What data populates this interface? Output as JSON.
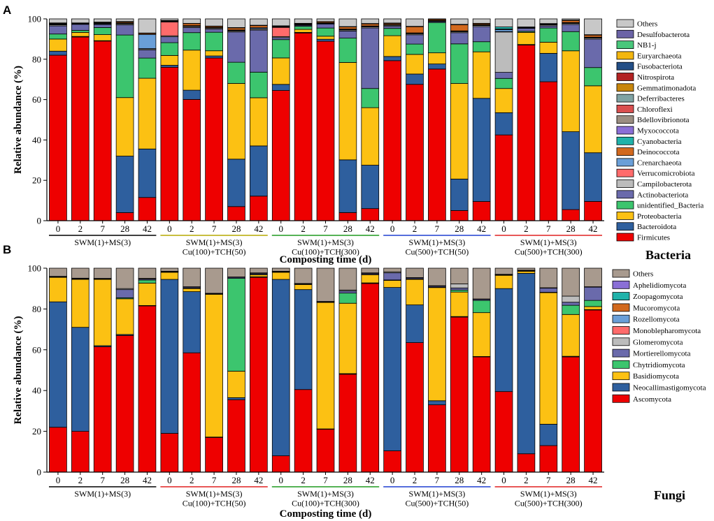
{
  "figure": {
    "panels": [
      "A",
      "B"
    ],
    "kingdom_labels": [
      "Bacteria",
      "Fungi"
    ]
  },
  "chart_data": [
    {
      "type": "bar",
      "stacked": true,
      "panel": "A",
      "kingdom": "Bacteria",
      "xlabel": "Composting time (d)",
      "ylabel": "Relative abundance (%)",
      "ylim": [
        0,
        100
      ],
      "yticks": [
        0,
        20,
        40,
        60,
        80,
        100
      ],
      "groups": [
        {
          "label": [
            "SWM(1)+MS(3)"
          ],
          "color": "#000000",
          "days": [
            "0",
            "2",
            "7",
            "28",
            "42"
          ]
        },
        {
          "label": [
            "SWM(1)+MS(3)",
            "Cu(100)+TCH(50)"
          ],
          "color": "#b5a800",
          "days": [
            "0",
            "2",
            "7",
            "28",
            "42"
          ]
        },
        {
          "label": [
            "SWM(1)+MS(3)",
            "Cu(100)+TCH(300)"
          ],
          "color": "#1f9a1f",
          "days": [
            "0",
            "2",
            "7",
            "28",
            "42"
          ]
        },
        {
          "label": [
            "SWM(1)+MS(3)",
            "Cu(500)+TCH(50)"
          ],
          "color": "#1f3fd0",
          "days": [
            "0",
            "2",
            "7",
            "28",
            "42"
          ]
        },
        {
          "label": [
            "SWM(1)+MS(3)",
            "Cu(500)+TCH(300)"
          ],
          "color": "#e02020",
          "days": [
            "0",
            "2",
            "7",
            "28",
            "42"
          ]
        }
      ],
      "legend": [
        "Others",
        "Desulfobacterota",
        "NB1-j",
        "Euryarchaeota",
        "Fusobacteriota",
        "Nitrospirota",
        "Gemmatimonadota",
        "Deferribacteres",
        "Chloroflexi",
        "Bdellovibrionota",
        "Myxococcota",
        "Cyanobacteria",
        "Deinococcota",
        "Crenarchaeota",
        "Verrucomicrobiota",
        "Campilobacterota",
        "Actinobacteriota",
        "unidentified_Bacteria",
        "Proteobacteria",
        "Bacteroidota",
        "Firmicutes"
      ],
      "colors": {
        "Firmicutes": "#ee0000",
        "Bacteroidota": "#2e5f9e",
        "Proteobacteria": "#fcc113",
        "unidentified_Bacteria": "#3cc56e",
        "Actinobacteriota": "#6a6aab",
        "Campilobacterota": "#bcbcbc",
        "Verrucomicrobiota": "#ff6b6b",
        "Crenarchaeota": "#6a9fd8",
        "Deinococcota": "#d2691e",
        "Cyanobacteria": "#20b2aa",
        "Myxococcota": "#8a6fd6",
        "Bdellovibrionota": "#9b8e82",
        "Chloroflexi": "#d94f4f",
        "Deferribacteres": "#7fa3a3",
        "Gemmatimonadota": "#c8860c",
        "Nitrospirota": "#b22222",
        "Fusobacteriota": "#224e86",
        "Euryarchaeota": "#f3b60f",
        "NB1-j": "#49c77b",
        "Desulfobacterota": "#6b63a6",
        "Others": "#c8c8c8"
      },
      "series": [
        {
          "name": "Firmicutes",
          "values": [
            82,
            91,
            89,
            4,
            11.5,
            78,
            59,
            79,
            7,
            12,
            64,
            93,
            88,
            4,
            6,
            77,
            66,
            75,
            5,
            9.5,
            42.5,
            87,
            68.5,
            5.5,
            9.5
          ]
        },
        {
          "name": "Bacteroidota",
          "values": [
            2,
            0.3,
            0.2,
            28,
            24,
            1,
            4.5,
            1,
            23.5,
            24.5,
            3,
            0.3,
            1,
            26,
            21.5,
            2,
            5,
            2.5,
            15.5,
            51,
            11,
            0.3,
            14,
            38.5,
            24
          ]
        },
        {
          "name": "Proteobacteria",
          "values": [
            6,
            2,
            3,
            29,
            35,
            5,
            19.5,
            2.5,
            37.5,
            23.5,
            13,
            1.5,
            1.5,
            48,
            28.5,
            10,
            9.5,
            5.5,
            47,
            23,
            12,
            6,
            5.5,
            40,
            33
          ]
        },
        {
          "name": "unidentified_Bacteria",
          "values": [
            2.5,
            1,
            3.5,
            31,
            10,
            6.5,
            8.5,
            9,
            10.5,
            12.5,
            9,
            1.5,
            4,
            12,
            9.5,
            3.5,
            5,
            15,
            19.5,
            5,
            5,
            0.5,
            7,
            9.5,
            9
          ]
        },
        {
          "name": "Actinobacteriota",
          "values": [
            4,
            3,
            1.5,
            5,
            4,
            3,
            2.5,
            1.5,
            15,
            20.5,
            1,
            0.5,
            2,
            3.5,
            30,
            1,
            4.5,
            0.5,
            5.5,
            7.5,
            3,
            1.5,
            1,
            3.5,
            14
          ]
        },
        {
          "name": "Campilobacterota",
          "values": [
            0.5,
            0.2,
            0.3,
            0.5,
            0.5,
            0.5,
            0.5,
            0.5,
            0.5,
            0.5,
            0.5,
            0.2,
            0.2,
            0.5,
            0.5,
            0.5,
            0.5,
            0.2,
            0.5,
            0.5,
            20,
            0.2,
            0.5,
            0.5,
            0.5
          ]
        },
        {
          "name": "Verrucomicrobiota",
          "values": [
            0.2,
            0.1,
            0.2,
            0.2,
            0.2,
            7,
            0.2,
            0.2,
            0.2,
            0.2,
            4.5,
            0.2,
            0.2,
            0.2,
            0.2,
            0.2,
            0.2,
            0.2,
            0.2,
            0.2,
            0.2,
            0.1,
            0.2,
            0.2,
            0.2
          ]
        },
        {
          "name": "Crenarchaeota",
          "values": [
            0.3,
            0.2,
            0.3,
            0.3,
            7,
            0.3,
            0.2,
            0.2,
            0.3,
            0.5,
            0.3,
            0.2,
            0.2,
            0.3,
            0.3,
            0.2,
            0.2,
            0.2,
            0.2,
            0.2,
            1,
            0.1,
            0.2,
            0.3,
            0.3
          ]
        },
        {
          "name": "Deinococcota",
          "values": [
            0.3,
            0.1,
            0.3,
            0.5,
            0.5,
            0.3,
            1,
            0.5,
            1,
            1,
            0.3,
            0.3,
            0.5,
            1,
            1,
            0.5,
            3,
            0.5,
            3,
            0.5,
            0.3,
            0.2,
            0.2,
            1,
            1
          ]
        },
        {
          "name": "Cyanobacteria",
          "values": [
            0.2,
            0.1,
            0.1,
            0.2,
            0.2,
            0.2,
            0.1,
            0.1,
            0.2,
            0.2,
            0.2,
            0.1,
            0.1,
            0.2,
            0.2,
            0.2,
            0.2,
            0.1,
            0.2,
            0.2,
            1,
            0.1,
            0.1,
            0.2,
            0.2
          ]
        },
        {
          "name": "Others",
          "values": [
            2,
            2,
            1.6,
            1.3,
            7,
            0.8,
            2.2,
            3.5,
            4.3,
            3.1,
            3.4,
            2.2,
            1.3,
            3.8,
            2.3,
            2,
            3.6,
            0.1,
            2.7,
            2.2,
            4,
            4,
            2.3,
            0.6,
            7.8
          ]
        }
      ]
    },
    {
      "type": "bar",
      "stacked": true,
      "panel": "B",
      "kingdom": "Fungi",
      "xlabel": "Composting time (d)",
      "ylabel": "Relative abundance (%)",
      "ylim": [
        0,
        100
      ],
      "yticks": [
        0,
        20,
        40,
        60,
        80,
        100
      ],
      "groups": [
        {
          "label": [
            "SWM(1)+MS(3)"
          ],
          "color": "#000000",
          "days": [
            "0",
            "2",
            "7",
            "28",
            "42"
          ]
        },
        {
          "label": [
            "SWM(1)+MS(3)",
            "Cu(100)+TCH(50)"
          ],
          "color": "#e02020",
          "days": [
            "0",
            "2",
            "7",
            "28",
            "42"
          ]
        },
        {
          "label": [
            "SWM(1)+MS(3)",
            "Cu(100)+TCH(300)"
          ],
          "color": "#1f9a1f",
          "days": [
            "0",
            "2",
            "7",
            "28",
            "42"
          ]
        },
        {
          "label": [
            "SWM(1)+MS(3)",
            "Cu(500)+TCH(50)"
          ],
          "color": "#1f3fd0",
          "days": [
            "0",
            "2",
            "7",
            "28",
            "42"
          ]
        },
        {
          "label": [
            "SWM(1)+MS(3)",
            "Cu(500)+TCH(300)"
          ],
          "color": "#e02020",
          "days": [
            "0",
            "2",
            "7",
            "28",
            "42"
          ]
        }
      ],
      "legend": [
        "Others",
        "Aphelidiomycota",
        "Zoopagomycota",
        "Mucoromycota",
        "Rozellomycota",
        "Monoblepharomycota",
        "Glomeromycota",
        "Mortierellomycota",
        "Chytridiomycota",
        "Basidiomycota",
        "Neocallimastigomycota",
        "Ascomycota"
      ],
      "colors": {
        "Ascomycota": "#ee0000",
        "Neocallimastigomycota": "#2e5f9e",
        "Basidiomycota": "#fcc113",
        "Chytridiomycota": "#3cc56e",
        "Mortierellomycota": "#6a6aab",
        "Glomeromycota": "#bcbcbc",
        "Monoblepharomycota": "#ff6b6b",
        "Rozellomycota": "#6a9fd8",
        "Mucoromycota": "#d2691e",
        "Zoopagomycota": "#20b2aa",
        "Aphelidiomycota": "#8a6fd6",
        "Others": "#a89a8e"
      },
      "series": [
        {
          "name": "Ascomycota",
          "values": [
            22,
            20,
            61.5,
            67,
            81.5,
            19,
            58.5,
            17,
            35.5,
            95.5,
            8,
            40.5,
            21,
            48,
            92.5,
            10.5,
            63.5,
            33,
            76,
            56.5,
            39.5,
            9,
            13,
            56.5,
            79.5
          ]
        },
        {
          "name": "Neocallimastigomycota",
          "values": [
            61.5,
            51,
            0.5,
            0.5,
            0.2,
            75.5,
            30,
            0.2,
            1,
            0.3,
            86.5,
            49,
            0.2,
            0.3,
            0.3,
            80.5,
            18.5,
            2,
            0.3,
            0.2,
            50.5,
            88.5,
            10.5,
            0.3,
            0.2
          ]
        },
        {
          "name": "Basidiomycota",
          "values": [
            12,
            23.5,
            32.5,
            17.5,
            11,
            3.5,
            1.5,
            70,
            13,
            1,
            3.5,
            2.5,
            62,
            34.5,
            4,
            3.5,
            12.5,
            55.5,
            12,
            21.5,
            6.5,
            1,
            64.5,
            20.5,
            1.5
          ]
        },
        {
          "name": "Chytridiomycota",
          "values": [
            0.2,
            0.2,
            0.2,
            0.5,
            1.5,
            0.2,
            0.2,
            0.2,
            45.5,
            0.2,
            0.2,
            0.2,
            0.2,
            5,
            0.2,
            0.2,
            0.2,
            0.2,
            1,
            6,
            0.2,
            0.2,
            0.2,
            4.5,
            3
          ]
        },
        {
          "name": "Mortierellomycota",
          "values": [
            0.2,
            0.3,
            0.2,
            4,
            0.5,
            0.2,
            0.5,
            0.2,
            0.5,
            0.5,
            0.2,
            0.2,
            0.2,
            1,
            0.5,
            3.5,
            0.5,
            0.5,
            1,
            0.5,
            0.2,
            0.2,
            2,
            1.5,
            6.5
          ]
        },
        {
          "name": "Glomeromycota",
          "values": [
            0.1,
            0.1,
            0.1,
            0.5,
            0.3,
            0.1,
            0.2,
            0.1,
            0.2,
            0.2,
            0.1,
            0.1,
            0.1,
            0.5,
            0.2,
            0.5,
            0.2,
            0.2,
            2,
            0.2,
            0.1,
            0.1,
            0.2,
            3,
            0.2
          ]
        },
        {
          "name": "Others",
          "values": [
            4,
            4.9,
            5,
            10,
            5,
            1.5,
            9.1,
            12.3,
            4.3,
            2.3,
            1.5,
            7.5,
            16.3,
            10.7,
            2.3,
            1.8,
            4.6,
            8.6,
            7.7,
            15.1,
            3,
            1,
            9.6,
            13.7,
            9.1
          ]
        }
      ]
    }
  ]
}
